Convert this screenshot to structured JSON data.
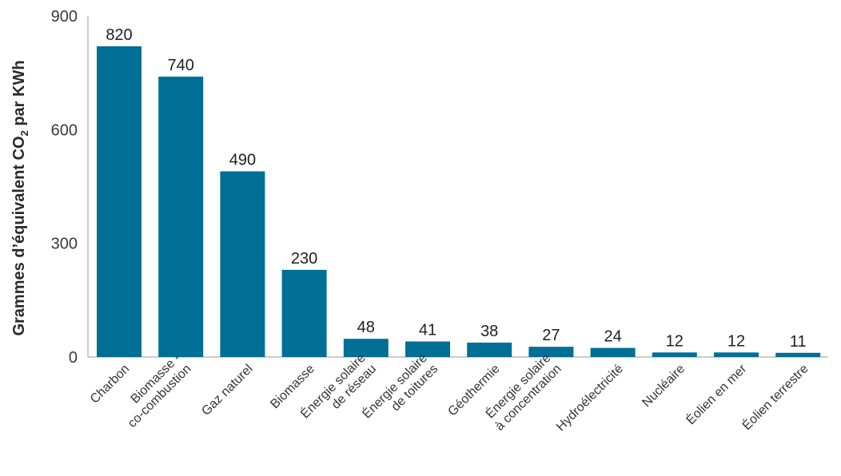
{
  "chart_data": {
    "type": "bar",
    "categories": [
      [
        "Charbon"
      ],
      [
        "Biomasse -",
        "co-combustion"
      ],
      [
        "Gaz naturel"
      ],
      [
        "Biomasse"
      ],
      [
        "Énergie solaire",
        "de réseau"
      ],
      [
        "Énergie solaire",
        "de toitures"
      ],
      [
        "Géothermie"
      ],
      [
        "Énergie solaire",
        "à concentration"
      ],
      [
        "Hydroélectricité"
      ],
      [
        "Nucléaire"
      ],
      [
        "Éolien en mer"
      ],
      [
        "Éolien terrestre"
      ]
    ],
    "values": [
      820,
      740,
      490,
      230,
      48,
      41,
      38,
      27,
      24,
      12,
      12,
      11
    ],
    "value_labels": [
      "820",
      "740",
      "490",
      "230",
      "48",
      "41",
      "38",
      "27",
      "24",
      "12",
      "12",
      "11"
    ],
    "ylabel": {
      "pre": "Grammes d’équivalent CO",
      "sub": "2",
      "post": " par KWh"
    },
    "ylim": [
      0,
      900
    ],
    "yticks": [
      0,
      300,
      600,
      900
    ],
    "ytick_labels": [
      "0",
      "300",
      "600",
      "900"
    ],
    "bar_color": "#006f96",
    "grid": false,
    "legend": "none"
  }
}
